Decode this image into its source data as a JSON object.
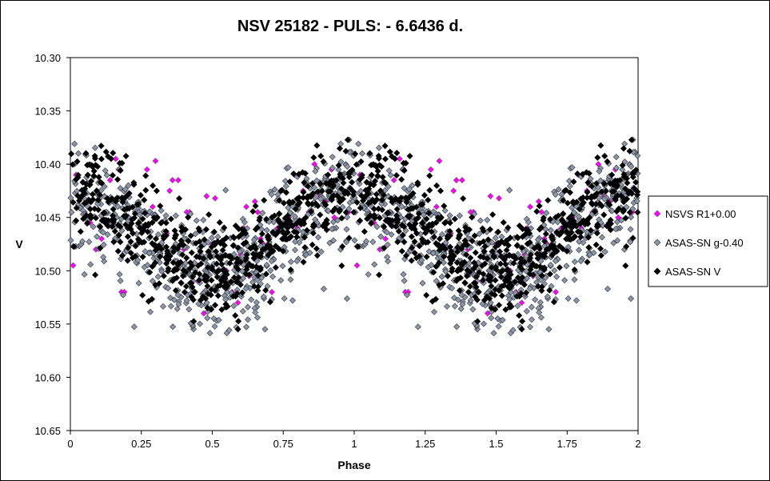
{
  "chart_data": {
    "type": "scatter",
    "title": "NSV 25182 - PULS: - 6.6436 d.",
    "xlabel": "Phase",
    "ylabel": "V",
    "xlim": [
      0,
      2
    ],
    "ylim": [
      10.3,
      10.65
    ],
    "y_inverted": true,
    "x_ticks": [
      "0",
      "0.25",
      "0.5",
      "0.75",
      "1",
      "1.25",
      "1.5",
      "1.75",
      "2"
    ],
    "y_ticks": [
      "10.30",
      "10.35",
      "10.40",
      "10.45",
      "10.50",
      "10.55",
      "10.60",
      "10.65"
    ],
    "grid": false,
    "legend_position": "right",
    "marker": "diamond",
    "phase_period": 1,
    "series": [
      {
        "name": "NSVS R1+0.00",
        "color": "#ff00ff",
        "stroke": "#666666",
        "points": [
          [
            0.01,
            10.495
          ],
          [
            0.02,
            10.41
          ],
          [
            0.05,
            10.445
          ],
          [
            0.07,
            10.455
          ],
          [
            0.09,
            10.48
          ],
          [
            0.11,
            10.47
          ],
          [
            0.12,
            10.43
          ],
          [
            0.14,
            10.415
          ],
          [
            0.16,
            10.395
          ],
          [
            0.17,
            10.405
          ],
          [
            0.18,
            10.52
          ],
          [
            0.19,
            10.52
          ],
          [
            0.2,
            10.48
          ],
          [
            0.22,
            10.465
          ],
          [
            0.24,
            10.455
          ],
          [
            0.26,
            10.46
          ],
          [
            0.27,
            10.405
          ],
          [
            0.29,
            10.44
          ],
          [
            0.3,
            10.397
          ],
          [
            0.32,
            10.475
          ],
          [
            0.34,
            10.465
          ],
          [
            0.35,
            10.425
          ],
          [
            0.36,
            10.415
          ],
          [
            0.38,
            10.415
          ],
          [
            0.4,
            10.48
          ],
          [
            0.41,
            10.445
          ],
          [
            0.42,
            10.445
          ],
          [
            0.45,
            10.51
          ],
          [
            0.47,
            10.54
          ],
          [
            0.48,
            10.43
          ],
          [
            0.5,
            10.475
          ],
          [
            0.51,
            10.432
          ],
          [
            0.53,
            10.49
          ],
          [
            0.55,
            10.5
          ],
          [
            0.57,
            10.52
          ],
          [
            0.59,
            10.53
          ],
          [
            0.6,
            10.485
          ],
          [
            0.61,
            10.46
          ],
          [
            0.62,
            10.44
          ],
          [
            0.63,
            10.505
          ],
          [
            0.65,
            10.435
          ],
          [
            0.66,
            10.445
          ],
          [
            0.67,
            10.47
          ],
          [
            0.68,
            10.475
          ],
          [
            0.7,
            10.475
          ],
          [
            0.71,
            10.52
          ],
          [
            0.73,
            10.46
          ],
          [
            0.75,
            10.47
          ],
          [
            0.77,
            10.45
          ],
          [
            0.79,
            10.41
          ],
          [
            0.8,
            10.46
          ],
          [
            0.82,
            10.425
          ],
          [
            0.84,
            10.445
          ],
          [
            0.86,
            10.4
          ],
          [
            0.88,
            10.43
          ],
          [
            0.9,
            10.435
          ],
          [
            0.92,
            10.405
          ],
          [
            0.93,
            10.45
          ],
          [
            0.95,
            10.435
          ],
          [
            0.97,
            10.4
          ],
          [
            0.98,
            10.445
          ]
        ]
      },
      {
        "name": "ASAS-SN g-0.40",
        "color": "#8a97ab",
        "stroke": "#333333",
        "model": {
          "mean": 10.469,
          "amplitude": 0.041,
          "min_phase": 0.5,
          "scatter": 0.026,
          "count": 560,
          "seed": 7
        }
      },
      {
        "name": "ASAS-SN V",
        "color": "#000000",
        "stroke": "#000000",
        "model": {
          "mean": 10.462,
          "amplitude": 0.037,
          "min_phase": 0.5,
          "scatter": 0.022,
          "count": 600,
          "seed": 13
        }
      }
    ]
  }
}
